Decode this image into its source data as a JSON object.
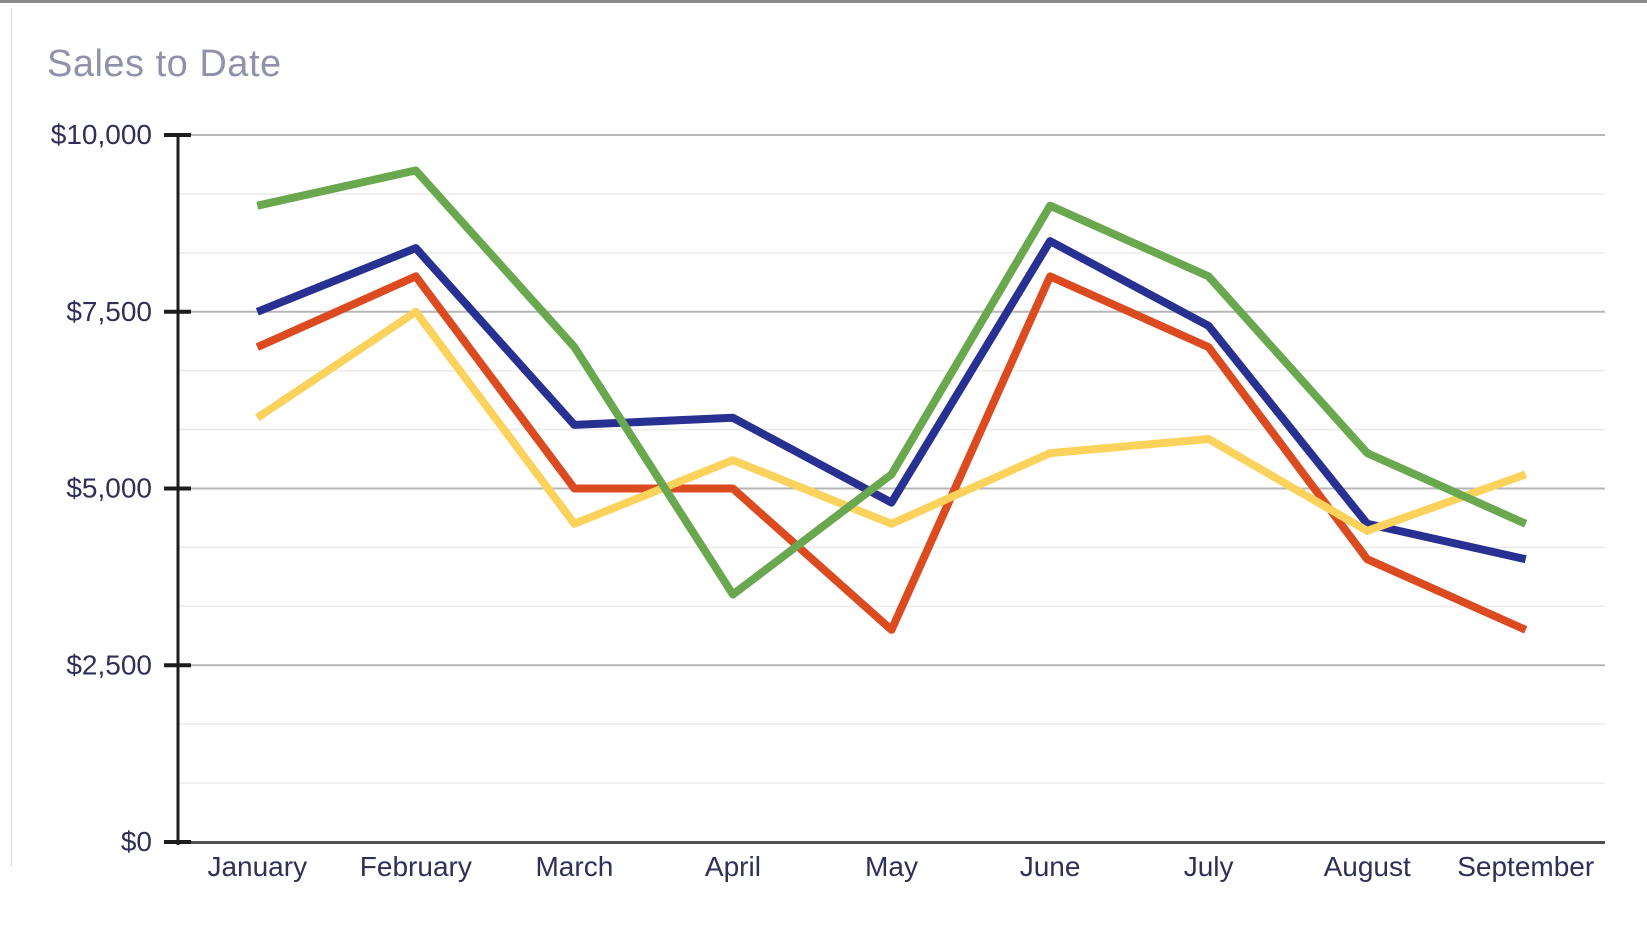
{
  "header": {
    "title": "Sales to Date"
  },
  "chart_data": {
    "type": "line",
    "title": "Sales to Date",
    "categories": [
      "January",
      "February",
      "March",
      "April",
      "May",
      "June",
      "July",
      "August",
      "September"
    ],
    "series": [
      {
        "name": "blue-series",
        "color": "#283191",
        "values": [
          7500,
          8400,
          5900,
          6000,
          4800,
          8500,
          7300,
          4500,
          4000
        ]
      },
      {
        "name": "red-series",
        "color": "#dc4a20",
        "values": [
          7000,
          8000,
          5000,
          5000,
          3000,
          8000,
          7000,
          4000,
          3000
        ]
      },
      {
        "name": "yellow-series",
        "color": "#fbd35c",
        "values": [
          6000,
          7500,
          4500,
          5400,
          4500,
          5500,
          5700,
          4400,
          5200
        ]
      },
      {
        "name": "green-series",
        "color": "#6aa84f",
        "values": [
          9000,
          9500,
          7000,
          3500,
          5200,
          9000,
          8000,
          5500,
          4500
        ]
      }
    ],
    "ylim": [
      0,
      10000
    ],
    "y_major_step": 2500,
    "y_minor_divisions": 3,
    "y_tick_labels": [
      "$0",
      "$2,500",
      "$5,000",
      "$7,500",
      "$10,000"
    ],
    "xlabel": "",
    "ylabel": "",
    "grid": "horizontal",
    "legend": "none"
  },
  "style": {
    "title_color": "#8f92aa",
    "label_color": "#2e3057",
    "major_grid_color": "#b6b6b6",
    "minor_grid_color": "#ebebeb",
    "y_axis_color": "#1d1d1d",
    "x_axis_color": "#4f5054",
    "tick_color": "#1d1d1d",
    "background": "#ffffff",
    "top_edge_color": "#8a8a8a",
    "left_border_color": "#d6d6d6"
  }
}
